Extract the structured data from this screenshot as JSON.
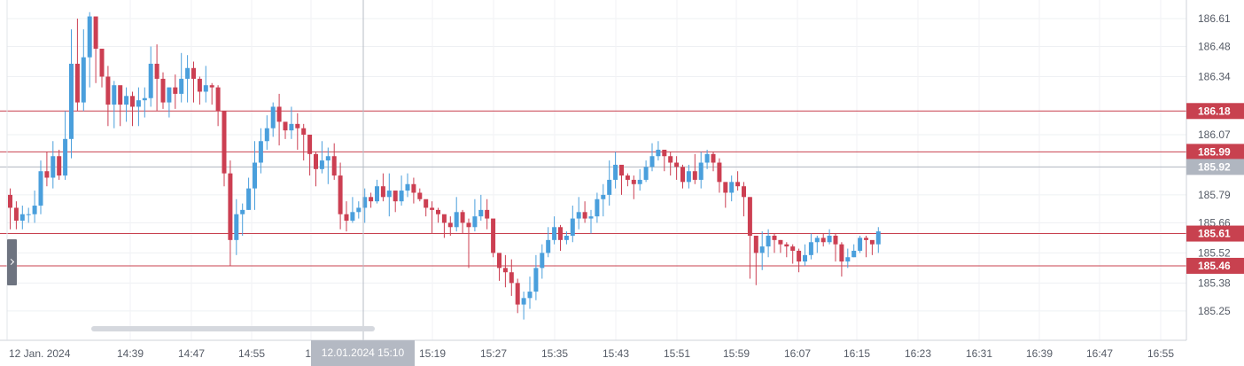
{
  "chart_data": {
    "type": "candlestick",
    "y_ticks": [
      "186.61",
      "186.48",
      "186.34",
      "186.07",
      "185.79",
      "185.66",
      "185.52",
      "185.38",
      "185.25"
    ],
    "x_ticks": [
      "12 Jan. 2024",
      "14:39",
      "14:47",
      "14:55",
      "15",
      "15:19",
      "15:27",
      "15:35",
      "15:43",
      "15:51",
      "15:59",
      "16:07",
      "16:15",
      "16:23",
      "16:31",
      "16:39",
      "16:47",
      "16:55"
    ],
    "ylim": [
      185.13,
      186.68
    ],
    "price_levels": [
      {
        "label": "186.18",
        "value": 186.18,
        "color": "#c8414f"
      },
      {
        "label": "185.99",
        "value": 185.99,
        "color": "#c8414f"
      },
      {
        "label": "185.92",
        "value": 185.92,
        "color": "#b0b6c0"
      },
      {
        "label": "185.61",
        "value": 185.61,
        "color": "#c8414f"
      },
      {
        "label": "185.46",
        "value": 185.46,
        "color": "#c8414f"
      }
    ],
    "crosshair_time": "12.01.2024 15:10",
    "colors": {
      "up": "#4a9fdc",
      "down": "#cc3f52"
    },
    "candles": [
      [
        185.79,
        185.73,
        185.82,
        185.63
      ],
      [
        185.73,
        185.67,
        185.76,
        185.63
      ],
      [
        185.67,
        185.7,
        185.74,
        185.63
      ],
      [
        185.7,
        185.7,
        185.73,
        185.66
      ],
      [
        185.7,
        185.74,
        185.81,
        185.66
      ],
      [
        185.74,
        185.9,
        185.95,
        185.7
      ],
      [
        185.9,
        185.87,
        185.99,
        185.83
      ],
      [
        185.87,
        185.97,
        186.04,
        185.82
      ],
      [
        185.97,
        185.88,
        186.0,
        185.86
      ],
      [
        185.88,
        186.05,
        186.18,
        185.86
      ],
      [
        186.05,
        186.4,
        186.56,
        185.96
      ],
      [
        186.4,
        186.22,
        186.61,
        186.18
      ],
      [
        186.22,
        186.43,
        186.56,
        186.18
      ],
      [
        186.43,
        186.62,
        186.64,
        186.29
      ],
      [
        186.62,
        186.47,
        186.52,
        186.31
      ],
      [
        186.47,
        186.34,
        186.44,
        186.29
      ],
      [
        186.34,
        186.21,
        186.39,
        186.11
      ],
      [
        186.21,
        186.3,
        186.32,
        186.1
      ],
      [
        186.3,
        186.21,
        186.24,
        186.11
      ],
      [
        186.21,
        186.25,
        186.29,
        186.13
      ],
      [
        186.25,
        186.2,
        186.27,
        186.11
      ],
      [
        186.2,
        186.23,
        186.29,
        186.11
      ],
      [
        186.23,
        186.24,
        186.29,
        186.15
      ],
      [
        186.24,
        186.4,
        186.48,
        186.2
      ],
      [
        186.4,
        186.33,
        186.49,
        186.18
      ],
      [
        186.33,
        186.22,
        186.36,
        186.19
      ],
      [
        186.22,
        186.29,
        186.29,
        186.15
      ],
      [
        186.29,
        186.26,
        186.35,
        186.19
      ],
      [
        186.26,
        186.33,
        186.45,
        186.22
      ],
      [
        186.33,
        186.38,
        186.44,
        186.22
      ],
      [
        186.38,
        186.33,
        186.41,
        186.22
      ],
      [
        186.33,
        186.27,
        186.34,
        186.21
      ],
      [
        186.27,
        186.3,
        186.39,
        186.22
      ],
      [
        186.3,
        186.29,
        186.31,
        186.21
      ],
      [
        186.29,
        186.18,
        186.3,
        186.11
      ],
      [
        186.18,
        185.89,
        186.18,
        185.83
      ],
      [
        185.89,
        185.58,
        185.95,
        185.46
      ],
      [
        185.58,
        185.7,
        185.77,
        185.51
      ],
      [
        185.7,
        185.72,
        185.75,
        185.6
      ],
      [
        185.72,
        185.82,
        185.87,
        185.72
      ],
      [
        185.82,
        185.94,
        186.04,
        185.72
      ],
      [
        185.94,
        186.04,
        186.1,
        185.89
      ],
      [
        186.04,
        186.1,
        186.16,
        186.0
      ],
      [
        186.1,
        186.2,
        186.22,
        186.06
      ],
      [
        186.2,
        186.13,
        186.26,
        186.02
      ],
      [
        186.13,
        186.09,
        186.12,
        186.05
      ],
      [
        186.09,
        186.12,
        186.2,
        186.05
      ],
      [
        186.12,
        186.1,
        186.17,
        186.0
      ],
      [
        186.1,
        186.07,
        186.12,
        185.95
      ],
      [
        186.07,
        185.98,
        186.05,
        185.88
      ],
      [
        185.98,
        185.91,
        185.99,
        185.83
      ],
      [
        185.91,
        185.95,
        186.04,
        185.89
      ],
      [
        185.95,
        185.97,
        186.01,
        185.84
      ],
      [
        185.97,
        185.88,
        186.03,
        185.86
      ],
      [
        185.88,
        185.7,
        185.94,
        185.63
      ],
      [
        185.7,
        185.67,
        185.76,
        185.62
      ],
      [
        185.67,
        185.71,
        185.78,
        185.66
      ],
      [
        185.71,
        185.73,
        185.76,
        185.68
      ],
      [
        185.73,
        185.78,
        185.82,
        185.66
      ],
      [
        185.78,
        185.76,
        185.8,
        185.73
      ],
      [
        185.76,
        185.83,
        185.86,
        185.75
      ],
      [
        185.83,
        185.78,
        185.89,
        185.76
      ],
      [
        185.78,
        185.81,
        185.89,
        185.69
      ],
      [
        185.81,
        185.76,
        185.79,
        185.71
      ],
      [
        185.76,
        185.81,
        185.88,
        185.74
      ],
      [
        185.81,
        185.84,
        185.89,
        185.78
      ],
      [
        185.84,
        185.8,
        185.87,
        185.75
      ],
      [
        185.8,
        185.77,
        185.82,
        185.76
      ],
      [
        185.77,
        185.73,
        185.76,
        185.69
      ],
      [
        185.73,
        185.72,
        185.76,
        185.61
      ],
      [
        185.72,
        185.7,
        185.73,
        185.66
      ],
      [
        185.7,
        185.66,
        185.68,
        185.59
      ],
      [
        185.66,
        185.64,
        185.69,
        185.6
      ],
      [
        185.64,
        185.71,
        185.78,
        185.62
      ],
      [
        185.71,
        185.66,
        185.72,
        185.61
      ],
      [
        185.66,
        185.64,
        185.68,
        185.45
      ],
      [
        185.64,
        185.69,
        185.77,
        185.62
      ],
      [
        185.69,
        185.72,
        185.79,
        185.67
      ],
      [
        185.72,
        185.68,
        185.77,
        185.63
      ],
      [
        185.68,
        185.52,
        185.66,
        185.5
      ],
      [
        185.52,
        185.45,
        185.48,
        185.39
      ],
      [
        185.45,
        185.43,
        185.51,
        185.36
      ],
      [
        185.43,
        185.38,
        185.49,
        185.32
      ],
      [
        185.38,
        185.28,
        185.4,
        185.24
      ],
      [
        185.28,
        185.31,
        185.34,
        185.21
      ],
      [
        185.31,
        185.34,
        185.41,
        185.26
      ],
      [
        185.34,
        185.45,
        185.51,
        185.3
      ],
      [
        185.45,
        185.52,
        185.56,
        185.4
      ],
      [
        185.52,
        185.58,
        185.64,
        185.5
      ],
      [
        185.58,
        185.64,
        185.69,
        185.56
      ],
      [
        185.64,
        185.58,
        185.65,
        185.53
      ],
      [
        185.58,
        185.6,
        185.62,
        185.56
      ],
      [
        185.6,
        185.68,
        185.74,
        185.57
      ],
      [
        185.68,
        185.71,
        185.78,
        185.63
      ],
      [
        185.71,
        185.68,
        185.76,
        185.66
      ],
      [
        185.68,
        185.69,
        185.72,
        185.61
      ],
      [
        185.69,
        185.77,
        185.8,
        185.66
      ],
      [
        185.77,
        185.79,
        185.84,
        185.69
      ],
      [
        185.79,
        185.86,
        185.95,
        185.74
      ],
      [
        185.86,
        185.93,
        185.99,
        185.82
      ],
      [
        185.93,
        185.88,
        185.92,
        185.79
      ],
      [
        185.88,
        185.86,
        185.89,
        185.83
      ],
      [
        185.86,
        185.84,
        185.88,
        185.77
      ],
      [
        185.84,
        185.86,
        185.91,
        185.81
      ],
      [
        185.86,
        185.92,
        185.95,
        185.85
      ],
      [
        185.92,
        185.97,
        186.03,
        185.9
      ],
      [
        185.97,
        186.0,
        186.04,
        185.95
      ],
      [
        186.0,
        185.97,
        185.99,
        185.9
      ],
      [
        185.97,
        185.94,
        185.99,
        185.88
      ],
      [
        185.94,
        185.92,
        185.97,
        185.86
      ],
      [
        185.92,
        185.85,
        185.93,
        185.82
      ],
      [
        185.85,
        185.9,
        185.93,
        185.82
      ],
      [
        185.9,
        185.86,
        185.98,
        185.84
      ],
      [
        185.86,
        185.94,
        185.99,
        185.82
      ],
      [
        185.94,
        185.98,
        186.0,
        185.91
      ],
      [
        185.98,
        185.94,
        185.99,
        185.9
      ],
      [
        185.94,
        185.85,
        185.96,
        185.8
      ],
      [
        185.85,
        185.8,
        185.84,
        185.73
      ],
      [
        185.8,
        185.85,
        185.88,
        185.76
      ],
      [
        185.85,
        185.83,
        185.9,
        185.81
      ],
      [
        185.83,
        185.78,
        185.85,
        185.69
      ],
      [
        185.78,
        185.6,
        185.78,
        185.4
      ],
      [
        185.6,
        185.52,
        185.6,
        185.37
      ],
      [
        185.52,
        185.55,
        185.62,
        185.44
      ],
      [
        185.55,
        185.6,
        185.63,
        185.5
      ],
      [
        185.6,
        185.58,
        185.61,
        185.52
      ],
      [
        185.58,
        185.56,
        185.58,
        185.52
      ],
      [
        185.56,
        185.55,
        185.57,
        185.5
      ],
      [
        185.55,
        185.53,
        185.56,
        185.47
      ],
      [
        185.53,
        185.48,
        185.54,
        185.43
      ],
      [
        185.48,
        185.51,
        185.56,
        185.46
      ],
      [
        185.51,
        185.57,
        185.61,
        185.49
      ],
      [
        185.57,
        185.59,
        185.6,
        185.52
      ],
      [
        185.59,
        185.57,
        185.61,
        185.55
      ],
      [
        185.57,
        185.6,
        185.63,
        185.56
      ],
      [
        185.6,
        185.56,
        185.61,
        185.48
      ],
      [
        185.56,
        185.48,
        185.57,
        185.41
      ],
      [
        185.48,
        185.5,
        185.54,
        185.45
      ],
      [
        185.5,
        185.53,
        185.56,
        185.5
      ],
      [
        185.53,
        185.59,
        185.6,
        185.52
      ],
      [
        185.59,
        185.58,
        185.6,
        185.5
      ],
      [
        185.58,
        185.56,
        185.57,
        185.51
      ],
      [
        185.56,
        185.62,
        185.64,
        185.52
      ]
    ]
  }
}
